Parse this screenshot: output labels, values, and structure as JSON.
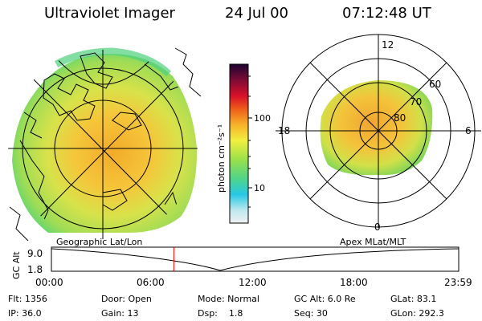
{
  "header": {
    "title": "Ultraviolet Imager",
    "date": "24 Jul 00",
    "time": "07:12:48 UT"
  },
  "colorbar": {
    "unit_label": "photon cm⁻²s⁻¹",
    "ticks": [
      {
        "label": "100",
        "value": 100
      },
      {
        "label": "10",
        "value": 10
      }
    ]
  },
  "left_panel": {
    "caption": "Geographic Lat/Lon"
  },
  "right_panel": {
    "caption": "Apex MLat/MLT",
    "mlt_labels": [
      "12",
      "18",
      "6",
      "0"
    ],
    "mlat_labels": [
      "60",
      "70",
      "80"
    ]
  },
  "altitude_plot": {
    "ylabel": "GC Alt",
    "y_ticks": [
      "9.0",
      "1.8"
    ],
    "x_ticks": [
      "00:00",
      "06:00",
      "12:00",
      "18:00",
      "23:59"
    ],
    "marker_time_hours": 7.21
  },
  "footer": {
    "row1": [
      "Flt: 1356",
      "Door: Open",
      "Mode: Normal",
      "GC Alt: 6.0 Re",
      "GLat: 83.1"
    ],
    "row2": [
      "IP: 36.0",
      "Gain: 13",
      "Dsp:    1.8",
      "Seq: 30",
      "GLon: 292.3"
    ]
  },
  "colors": {
    "marker": "#ff0000",
    "aurora_high": "#f5a020",
    "aurora_mid": "#cde13c",
    "aurora_low": "#7fd860"
  }
}
